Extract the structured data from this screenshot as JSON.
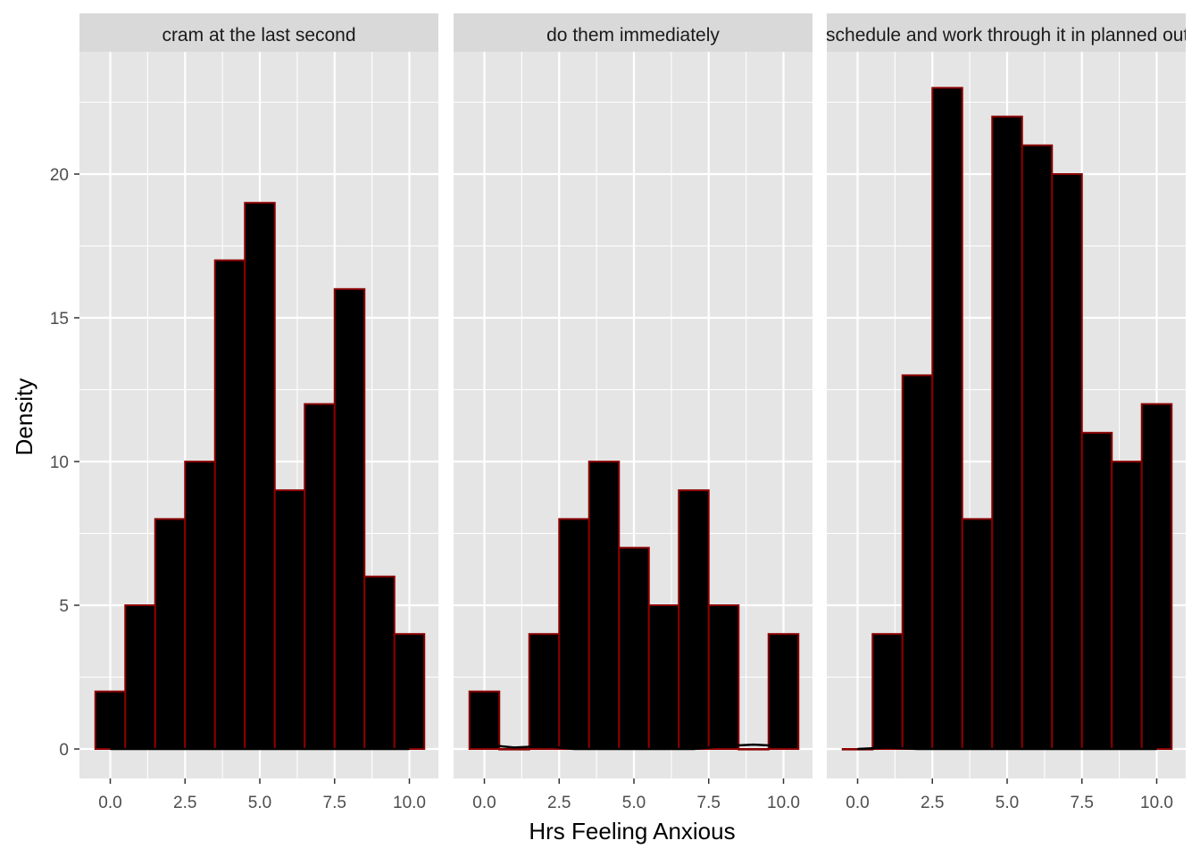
{
  "chart_data": {
    "type": "bar",
    "subtype": "faceted-histogram",
    "xlabel": "Hrs Feeling Anxious",
    "ylabel": "Density",
    "xlim": [
      -0.5,
      10.5
    ],
    "ylim": [
      0,
      23
    ],
    "x_ticks": [
      0,
      2.5,
      5,
      7.5,
      10
    ],
    "x_tick_labels": [
      "0.0",
      "2.5",
      "5.0",
      "7.5",
      "10.0"
    ],
    "y_ticks": [
      0,
      5,
      10,
      15,
      20
    ],
    "y_tick_labels": [
      "0",
      "5",
      "10",
      "15",
      "20"
    ],
    "grid": true,
    "legend": "none",
    "bin_width": 1,
    "bins": [
      0,
      1,
      2,
      3,
      4,
      5,
      6,
      7,
      8,
      9,
      10
    ],
    "colors": {
      "panel_background": "#e5e5e5",
      "grid": "#ffffff",
      "strip_background": "#d9d9d9",
      "bar_fill": "#000000",
      "bar_outline": "#8b0000"
    },
    "facets": [
      {
        "label": "cram at the last second",
        "values": [
          2,
          5,
          8,
          10,
          17,
          19,
          9,
          12,
          16,
          6,
          4
        ],
        "density": [
          0,
          0,
          0,
          0,
          0,
          0,
          0,
          0,
          0,
          0,
          0
        ]
      },
      {
        "label": "do them immediately",
        "values": [
          2,
          0,
          4,
          8,
          10,
          7,
          5,
          9,
          5,
          0,
          4
        ],
        "density": [
          0.15,
          0.05,
          0.1,
          0,
          0,
          0,
          0,
          0,
          0.1,
          0.15,
          0.1
        ]
      },
      {
        "label": "make a schedule and work through it in planned out chunks",
        "values": [
          0,
          4,
          13,
          23,
          8,
          22,
          21,
          20,
          11,
          10,
          12
        ],
        "density": [
          0,
          0.05,
          0,
          0,
          0,
          0,
          0,
          0,
          0,
          0,
          0
        ]
      }
    ]
  }
}
